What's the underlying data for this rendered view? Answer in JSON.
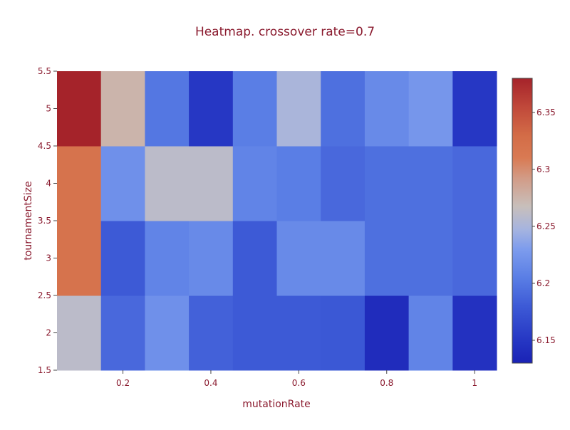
{
  "chart_data": {
    "type": "heatmap",
    "title": "Heatmap. crossover rate=0.7",
    "xlabel": "mutationRate",
    "ylabel": "tournamentSize",
    "x_centers": [
      0.1,
      0.2,
      0.3,
      0.4,
      0.5,
      0.6,
      0.7,
      0.8,
      0.9,
      1.0
    ],
    "y_centers": [
      2,
      3,
      4,
      5
    ],
    "xlim": [
      0.05,
      1.05
    ],
    "ylim": [
      1.5,
      5.5
    ],
    "x_ticks": [
      0.2,
      0.4,
      0.6,
      0.8,
      1
    ],
    "x_tick_labels": [
      "0.2",
      "0.4",
      "0.6",
      "0.8",
      "1"
    ],
    "y_ticks": [
      1.5,
      2,
      2.5,
      3,
      3.5,
      4,
      4.5,
      5,
      5.5
    ],
    "y_tick_labels": [
      "1.5",
      "2",
      "2.5",
      "3",
      "3.5",
      "4",
      "4.5",
      "5",
      "5.5"
    ],
    "z": [
      [
        6.26,
        6.19,
        6.22,
        6.185,
        6.18,
        6.18,
        6.178,
        6.14,
        6.21,
        6.145
      ],
      [
        6.32,
        6.18,
        6.21,
        6.215,
        6.18,
        6.215,
        6.215,
        6.195,
        6.195,
        6.19
      ],
      [
        6.32,
        6.22,
        6.26,
        6.26,
        6.21,
        6.205,
        6.19,
        6.195,
        6.195,
        6.19
      ],
      [
        6.38,
        6.275,
        6.2,
        6.15,
        6.205,
        6.25,
        6.195,
        6.215,
        6.225,
        6.15
      ]
    ],
    "colorscale": [
      [
        0.0,
        "#1a22b5"
      ],
      [
        0.07,
        "#2434c2"
      ],
      [
        0.2,
        "#3d5ad6"
      ],
      [
        0.3,
        "#5a7ee5"
      ],
      [
        0.4,
        "#7d9ced"
      ],
      [
        0.47,
        "#a6b4df"
      ],
      [
        0.55,
        "#c8bfbb"
      ],
      [
        0.65,
        "#d29b86"
      ],
      [
        0.72,
        "#d97a53"
      ],
      [
        0.8,
        "#d36c47"
      ],
      [
        0.9,
        "#c0483a"
      ],
      [
        1.0,
        "#a5232a"
      ]
    ],
    "zmin": 6.13,
    "zmax": 6.38,
    "colorbar": {
      "ticks": [
        6.15,
        6.2,
        6.25,
        6.3,
        6.35
      ],
      "tick_labels": [
        "6.15",
        "6.2",
        "6.25",
        "6.3",
        "6.35"
      ]
    },
    "grid": false
  },
  "colors": {
    "text": "#8a1a2e",
    "background": "#ffffff",
    "colorbar_border": "#444444"
  }
}
